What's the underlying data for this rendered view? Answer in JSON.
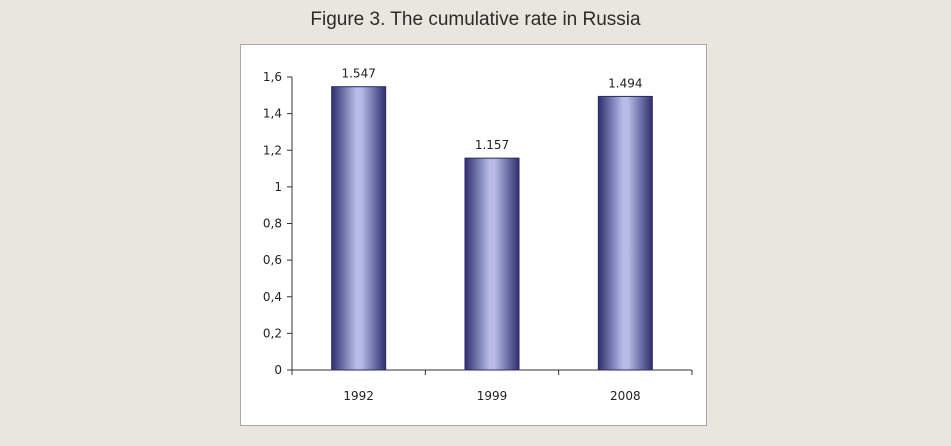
{
  "figure": {
    "title": "Figure 3. The cumulative rate in Russia"
  },
  "colors": {
    "background": "#e9e6df",
    "bar_dark": "#2e2f6e",
    "bar_light": "#b7bbe6",
    "frame": "#a8a8a8"
  },
  "chart_data": {
    "type": "bar",
    "title": "Figure 3. The cumulative rate in Russia",
    "categories": [
      "1992",
      "1999",
      "2008"
    ],
    "values": [
      1.547,
      1.157,
      1.494
    ],
    "data_labels": [
      "1.547",
      "1.157",
      "1.494"
    ],
    "xlabel": "",
    "ylabel": "",
    "ylim": [
      0,
      1.6
    ],
    "yticks": [
      0,
      0.2,
      0.4,
      0.6,
      0.8,
      1,
      1.2,
      1.4,
      1.6
    ],
    "ytick_labels": [
      "0",
      "0,2",
      "0,4",
      "0,6",
      "0,8",
      "1",
      "1,2",
      "1,4",
      "1,6"
    ],
    "grid": false,
    "legend": "none"
  }
}
